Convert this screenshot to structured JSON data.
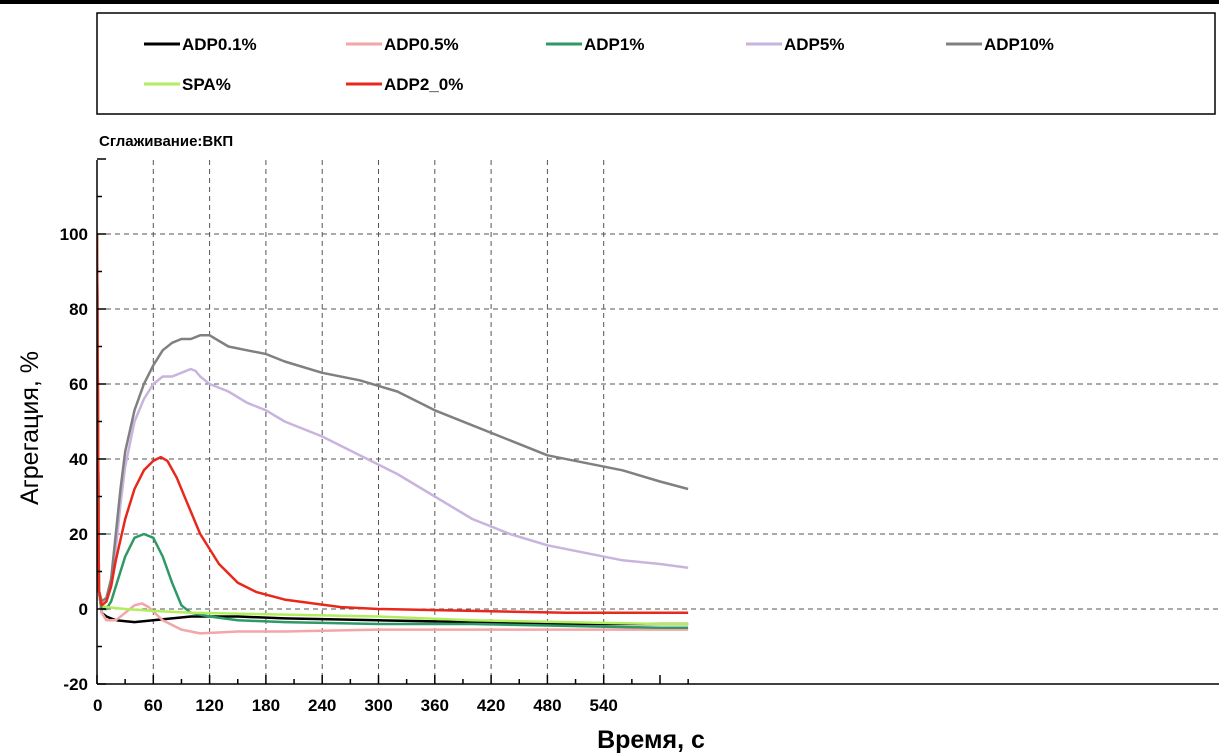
{
  "chart_data": {
    "type": "line",
    "subtitle": "Сглаживание:ВКП",
    "xlabel": "Время, с",
    "ylabel": "Агрегация, %",
    "xlim": [
      0,
      630
    ],
    "ylim": [
      -20,
      120
    ],
    "x_ticks": [
      "0",
      "60",
      "120",
      "180",
      "240",
      "300",
      "360",
      "420",
      "480",
      "540"
    ],
    "y_ticks": [
      "-20",
      "0",
      "20",
      "40",
      "60",
      "80",
      "100"
    ],
    "grid": true,
    "legend_position": "top",
    "series": [
      {
        "name": "ADP0.1%",
        "color": "#000000",
        "x": [
          0,
          2,
          5,
          10,
          20,
          40,
          60,
          100,
          150,
          200,
          300,
          400,
          500,
          600,
          630
        ],
        "y": [
          100,
          5,
          -1,
          -2,
          -3,
          -3.5,
          -3,
          -2,
          -2,
          -2.5,
          -3,
          -3.5,
          -4,
          -4,
          -4
        ]
      },
      {
        "name": "ADP0.5%",
        "color": "#f4a6a6",
        "x": [
          0,
          2,
          5,
          10,
          20,
          30,
          40,
          48,
          55,
          70,
          90,
          110,
          150,
          200,
          300,
          400,
          500,
          630
        ],
        "y": [
          100,
          5,
          -1,
          -3,
          -3,
          -1,
          1,
          1.5,
          0.5,
          -3,
          -5.5,
          -6.5,
          -6,
          -6,
          -5.5,
          -5.5,
          -5.5,
          -5.5
        ]
      },
      {
        "name": "ADP1%",
        "color": "#2e9966",
        "x": [
          0,
          2,
          5,
          10,
          15,
          20,
          30,
          40,
          50,
          60,
          70,
          80,
          90,
          100,
          120,
          150,
          200,
          300,
          400,
          500,
          600,
          630
        ],
        "y": [
          100,
          5,
          0,
          0,
          2,
          6,
          14,
          19,
          20,
          19,
          14,
          7,
          1,
          -1,
          -2,
          -3,
          -3.5,
          -4,
          -4,
          -4.5,
          -5,
          -5
        ]
      },
      {
        "name": "ADP5%",
        "color": "#c8b4de",
        "x": [
          0,
          2,
          5,
          10,
          15,
          20,
          25,
          30,
          40,
          50,
          60,
          70,
          80,
          90,
          100,
          105,
          110,
          120,
          140,
          160,
          180,
          200,
          240,
          280,
          320,
          360,
          400,
          440,
          480,
          520,
          560,
          600,
          630
        ],
        "y": [
          100,
          5,
          2,
          3,
          6,
          16,
          28,
          38,
          50,
          56,
          60,
          62,
          62,
          63,
          64,
          63.5,
          62,
          60,
          58,
          55,
          53,
          50,
          46,
          41,
          36,
          30,
          24,
          20,
          17,
          15,
          13,
          12,
          11
        ]
      },
      {
        "name": "ADP10%",
        "color": "#808080",
        "x": [
          0,
          2,
          5,
          10,
          15,
          20,
          25,
          30,
          40,
          50,
          60,
          70,
          80,
          90,
          100,
          110,
          120,
          140,
          160,
          180,
          200,
          240,
          280,
          320,
          360,
          400,
          440,
          480,
          520,
          560,
          600,
          630
        ],
        "y": [
          100,
          5,
          2,
          3,
          8,
          20,
          32,
          42,
          53,
          60,
          65,
          69,
          71,
          72,
          72,
          73,
          73,
          70,
          69,
          68,
          66,
          63,
          61,
          58,
          53,
          49,
          45,
          41,
          39,
          37,
          34,
          32
        ]
      },
      {
        "name": "SPA%",
        "color": "#b0ee5c",
        "x": [
          0,
          2,
          5,
          10,
          30,
          60,
          100,
          200,
          300,
          400,
          500,
          600,
          630
        ],
        "y": [
          100,
          5,
          1,
          0.5,
          0,
          -0.5,
          -1,
          -1.5,
          -2,
          -3,
          -3.5,
          -4,
          -4
        ]
      },
      {
        "name": "ADP2_0%",
        "color": "#e8281a",
        "x": [
          0,
          2,
          5,
          10,
          15,
          20,
          30,
          40,
          50,
          60,
          68,
          75,
          85,
          95,
          110,
          130,
          150,
          170,
          200,
          230,
          260,
          300,
          400,
          500,
          600,
          630
        ],
        "y": [
          100,
          5,
          1,
          2,
          6,
          13,
          24,
          32,
          37,
          39.5,
          40.5,
          39.5,
          35,
          29,
          20,
          12,
          7,
          4.5,
          2.5,
          1.5,
          0.5,
          0,
          -0.5,
          -1,
          -1,
          -1
        ]
      }
    ]
  }
}
